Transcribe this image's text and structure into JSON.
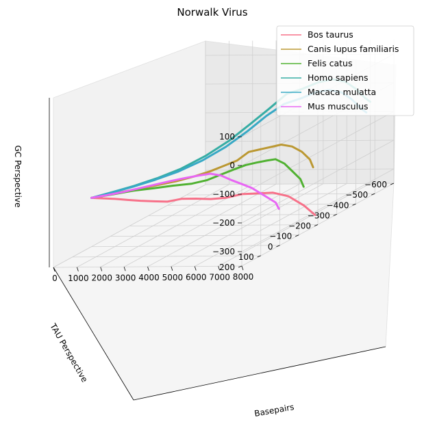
{
  "chart_data": {
    "type": "line",
    "projection": "3d",
    "title": "Norwalk Virus",
    "xlabel": "Basepairs",
    "ylabel": "TAU Perspective",
    "zlabel": "GC Perspective",
    "x_ticks": [
      "0",
      "1000",
      "2000",
      "3000",
      "4000",
      "5000",
      "6000",
      "7000",
      "8000"
    ],
    "y_ticks": [
      "−600",
      "−500",
      "−400",
      "−300",
      "−200",
      "−100",
      "0",
      "100",
      "200"
    ],
    "z_ticks": [
      "100",
      "0",
      "−100",
      "−200",
      "−300"
    ],
    "xlim": [
      0,
      8000
    ],
    "ylim": [
      -600,
      200
    ],
    "zlim": [
      -350,
      150
    ],
    "grid": true,
    "legend_position": "top-right",
    "series": [
      {
        "name": "Bos taurus",
        "color": "#f77189",
        "points": [
          [
            7800,
            -210,
            -320
          ],
          [
            7500,
            -190,
            -280
          ],
          [
            7000,
            -170,
            -240
          ],
          [
            6500,
            -150,
            -220
          ],
          [
            6000,
            -130,
            -215
          ],
          [
            5500,
            -110,
            -210
          ],
          [
            5000,
            -90,
            -215
          ],
          [
            4500,
            -70,
            -212
          ],
          [
            4000,
            -55,
            -205
          ],
          [
            3500,
            -40,
            -200
          ],
          [
            3000,
            -28,
            -205
          ],
          [
            2500,
            -18,
            -200
          ],
          [
            2000,
            -10,
            -195
          ],
          [
            1500,
            -5,
            -190
          ],
          [
            1000,
            -2,
            -185
          ],
          [
            500,
            0,
            -182
          ],
          [
            0,
            0,
            -180
          ]
        ]
      },
      {
        "name": "Canis lupus familiaris",
        "color": "#bb9832",
        "points": [
          [
            7800,
            -200,
            -150
          ],
          [
            7500,
            -220,
            -130
          ],
          [
            7000,
            -240,
            -110
          ],
          [
            6500,
            -250,
            -95
          ],
          [
            6000,
            -255,
            -90
          ],
          [
            5500,
            -260,
            -100
          ],
          [
            5000,
            -265,
            -110
          ],
          [
            4500,
            -270,
            -120
          ],
          [
            4000,
            -270,
            -150
          ],
          [
            3500,
            -260,
            -165
          ],
          [
            3000,
            -250,
            -180
          ],
          [
            2500,
            -230,
            -190
          ],
          [
            2000,
            -200,
            -195
          ],
          [
            1500,
            -150,
            -192
          ],
          [
            1000,
            -100,
            -188
          ],
          [
            500,
            -50,
            -184
          ],
          [
            0,
            0,
            -180
          ]
        ]
      },
      {
        "name": "Felis catus",
        "color": "#50b131",
        "points": [
          [
            7800,
            -150,
            -200
          ],
          [
            7500,
            -170,
            -180
          ],
          [
            7000,
            -190,
            -160
          ],
          [
            6500,
            -210,
            -140
          ],
          [
            6000,
            -225,
            -130
          ],
          [
            5500,
            -240,
            -140
          ],
          [
            5000,
            -250,
            -150
          ],
          [
            4500,
            -255,
            -160
          ],
          [
            4000,
            -255,
            -175
          ],
          [
            3500,
            -245,
            -190
          ],
          [
            3000,
            -235,
            -205
          ],
          [
            2500,
            -215,
            -210
          ],
          [
            2000,
            -185,
            -205
          ],
          [
            1500,
            -140,
            -198
          ],
          [
            1000,
            -95,
            -190
          ],
          [
            500,
            -45,
            -185
          ],
          [
            0,
            0,
            -180
          ]
        ]
      },
      {
        "name": "Homo sapiens",
        "color": "#36ada4",
        "points": [
          [
            7800,
            -500,
            -30
          ],
          [
            7500,
            -510,
            -20
          ],
          [
            7000,
            -520,
            10
          ],
          [
            6500,
            -530,
            30
          ],
          [
            6000,
            -525,
            40
          ],
          [
            5500,
            -510,
            35
          ],
          [
            5000,
            -490,
            20
          ],
          [
            4500,
            -470,
            10
          ],
          [
            4000,
            -440,
            -30
          ],
          [
            3500,
            -400,
            -70
          ],
          [
            3000,
            -350,
            -110
          ],
          [
            2500,
            -290,
            -140
          ],
          [
            2000,
            -220,
            -160
          ],
          [
            1500,
            -160,
            -170
          ],
          [
            1000,
            -100,
            -175
          ],
          [
            500,
            -50,
            -178
          ],
          [
            0,
            0,
            -180
          ]
        ]
      },
      {
        "name": "Macaca mulatta",
        "color": "#38a9c5",
        "points": [
          [
            7800,
            -480,
            -60
          ],
          [
            7500,
            -490,
            -50
          ],
          [
            7000,
            -500,
            -20
          ],
          [
            6500,
            -510,
            0
          ],
          [
            6000,
            -505,
            10
          ],
          [
            5500,
            -495,
            5
          ],
          [
            5000,
            -480,
            -10
          ],
          [
            4500,
            -455,
            -20
          ],
          [
            4000,
            -425,
            -50
          ],
          [
            3500,
            -385,
            -90
          ],
          [
            3000,
            -335,
            -125
          ],
          [
            2500,
            -275,
            -150
          ],
          [
            2000,
            -210,
            -165
          ],
          [
            1500,
            -150,
            -172
          ],
          [
            1000,
            -95,
            -176
          ],
          [
            500,
            -45,
            -178
          ],
          [
            0,
            0,
            -180
          ]
        ]
      },
      {
        "name": "Mus musculus",
        "color": "#e866f4",
        "points": [
          [
            7800,
            -20,
            -230
          ],
          [
            7500,
            -40,
            -215
          ],
          [
            7000,
            -60,
            -205
          ],
          [
            6500,
            -80,
            -195
          ],
          [
            6000,
            -100,
            -185
          ],
          [
            5500,
            -110,
            -175
          ],
          [
            5000,
            -120,
            -165
          ],
          [
            4500,
            -125,
            -150
          ],
          [
            4000,
            -130,
            -145
          ],
          [
            3500,
            -125,
            -150
          ],
          [
            3000,
            -115,
            -155
          ],
          [
            2500,
            -100,
            -160
          ],
          [
            2000,
            -80,
            -165
          ],
          [
            1500,
            -60,
            -170
          ],
          [
            1000,
            -40,
            -175
          ],
          [
            500,
            -20,
            -178
          ],
          [
            0,
            0,
            -180
          ]
        ]
      }
    ]
  }
}
